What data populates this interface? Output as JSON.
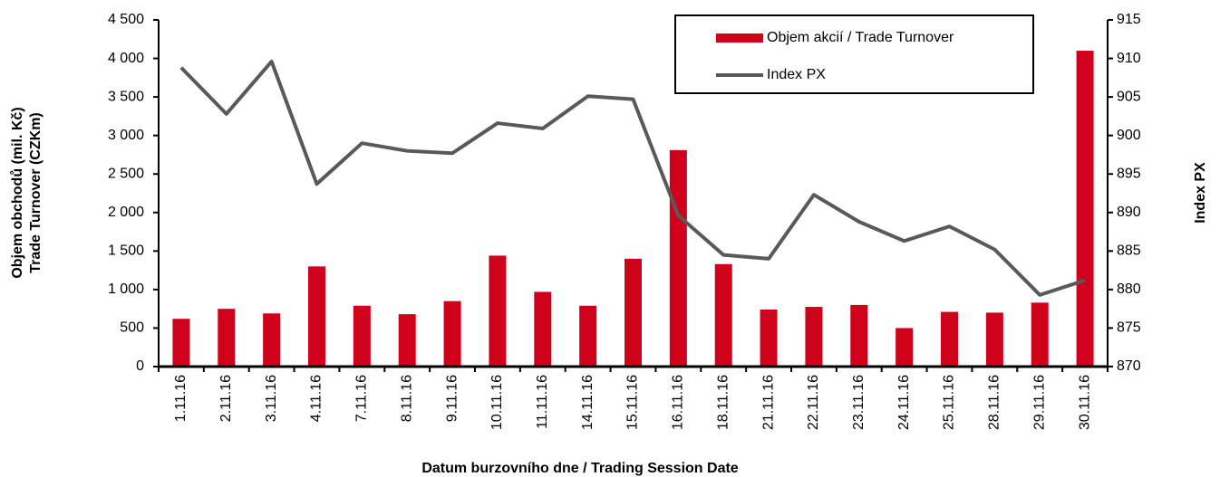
{
  "chart_data": {
    "type": "bar-line",
    "y_label": [
      "Objem obchodů (mil. Kč)",
      "Trade Turnover (CZKm)"
    ],
    "y2_label": "Index PX",
    "x_label": "Datum burzovního dne / Trading Session Date",
    "categories": [
      "1.11.16",
      "2.11.16",
      "3.11.16",
      "4.11.16",
      "7.11.16",
      "8.11.16",
      "9.11.16",
      "10.11.16",
      "11.11.16",
      "14.11.16",
      "15.11.16",
      "16.11.16",
      "18.11.16",
      "21.11.16",
      "22.11.16",
      "23.11.16",
      "24.11.16",
      "25.11.16",
      "28.11.16",
      "29.11.16",
      "30.11.16"
    ],
    "series": [
      {
        "name": "Objem akcií / Trade Turnover",
        "type": "bar",
        "color": "#d0021b",
        "values": [
          620,
          750,
          690,
          1300,
          790,
          680,
          850,
          1440,
          970,
          790,
          1400,
          2810,
          1330,
          740,
          775,
          800,
          500,
          710,
          700,
          830,
          4100
        ]
      },
      {
        "name": "Index PX",
        "type": "line",
        "axis": "y2",
        "color": "#595959",
        "values": [
          908.8,
          902.8,
          909.6,
          893.7,
          899.0,
          898.0,
          897.7,
          901.6,
          900.9,
          905.1,
          904.7,
          889.6,
          884.5,
          884.0,
          892.3,
          888.8,
          886.3,
          888.2,
          885.2,
          879.3,
          881.2
        ]
      }
    ],
    "ylim": [
      0,
      4500
    ],
    "yticks": [
      0,
      500,
      {
        "value": 1000,
        "label": "1 000"
      },
      {
        "value": 1500,
        "label": "1 500"
      },
      {
        "value": 2000,
        "label": "2 000"
      },
      {
        "value": 2500,
        "label": "2 500"
      },
      {
        "value": 3000,
        "label": "3 000"
      },
      {
        "value": 3500,
        "label": "3 500"
      },
      {
        "value": 4000,
        "label": "4 000"
      },
      {
        "value": 4500,
        "label": "4 500"
      }
    ],
    "y2lim": [
      870,
      915
    ],
    "y2ticks": [
      870,
      875,
      880,
      885,
      890,
      895,
      900,
      905,
      910,
      915
    ],
    "legend": "top-right"
  }
}
